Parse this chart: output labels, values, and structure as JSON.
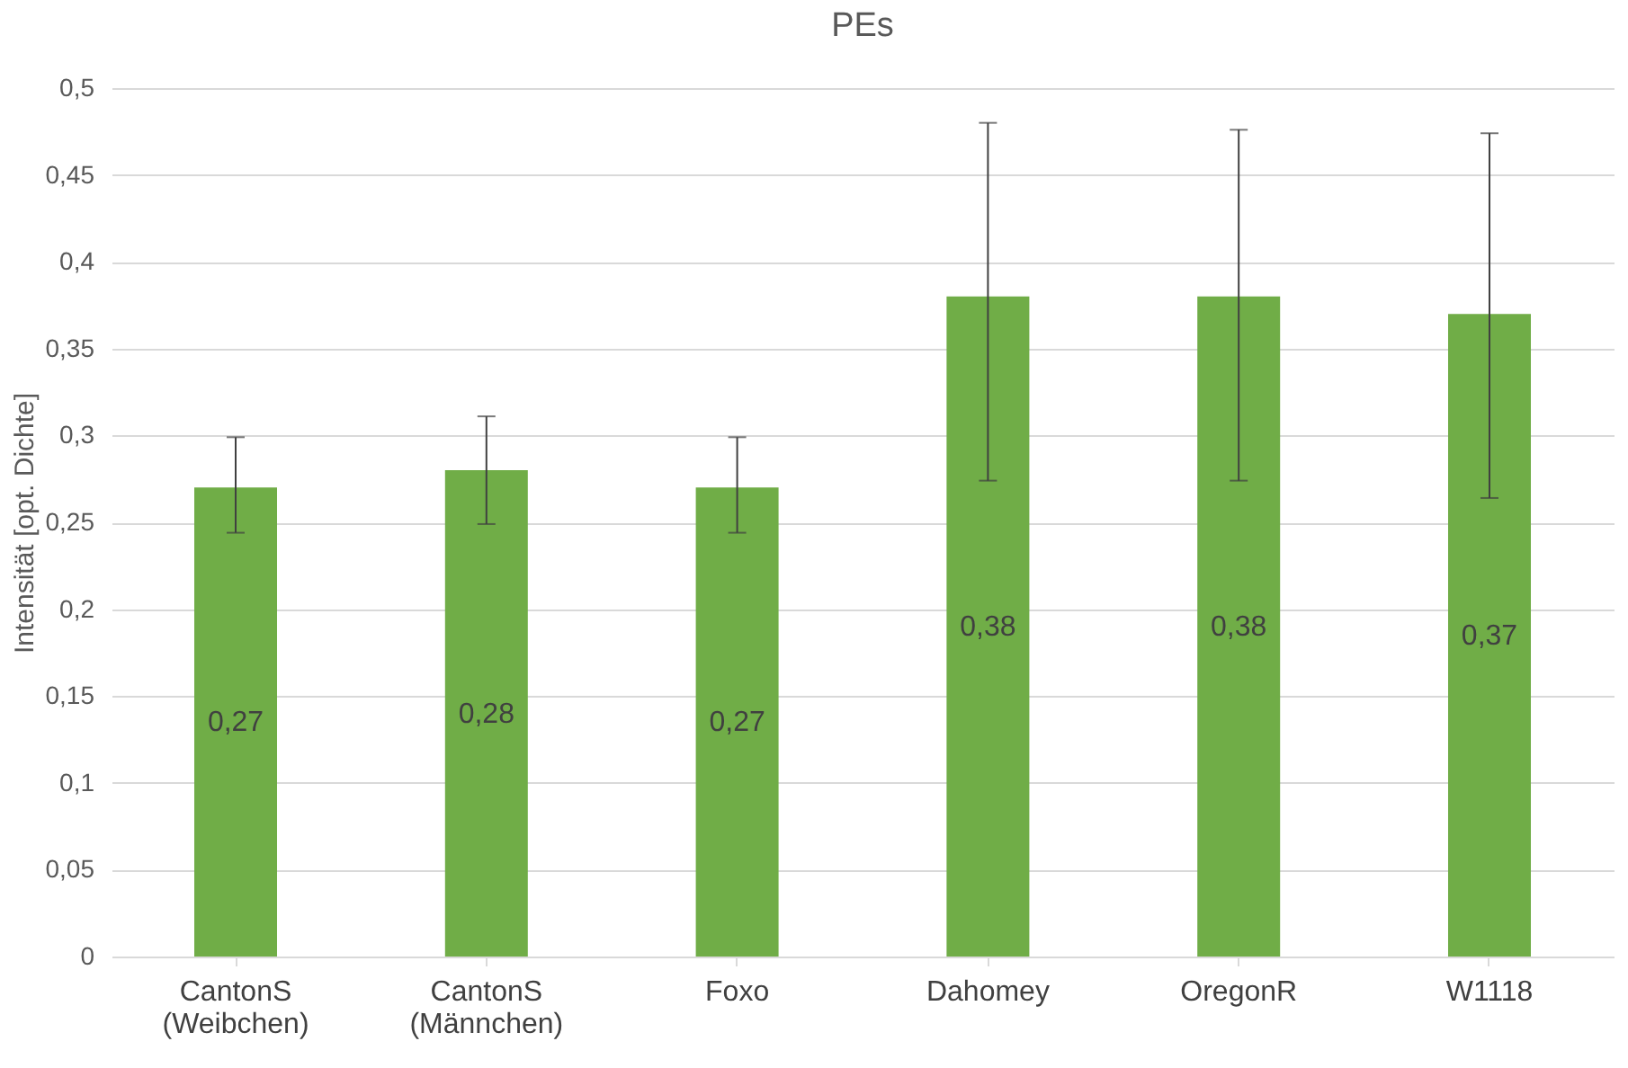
{
  "chart_data": {
    "type": "bar",
    "title": "PEs",
    "ylabel": "Intensität [opt. Dichte]",
    "categories": [
      "CantonS (Weibchen)",
      "CantonS (Männchen)",
      "Foxo",
      "Dahomey",
      "OregonR",
      "W1118"
    ],
    "values": [
      0.27,
      0.28,
      0.27,
      0.38,
      0.38,
      0.37
    ],
    "value_labels": [
      "0,27",
      "0,28",
      "0,27",
      "0,38",
      "0,38",
      "0,37"
    ],
    "errors": [
      [
        0.244,
        0.299
      ],
      [
        0.249,
        0.311
      ],
      [
        0.244,
        0.299
      ],
      [
        0.274,
        0.48
      ],
      [
        0.274,
        0.476
      ],
      [
        0.264,
        0.474
      ]
    ],
    "color": "#70ad47",
    "ylim": [
      0,
      0.5
    ],
    "yticks": [
      0,
      {
        "value": 0.05,
        "label": "0,05"
      },
      {
        "value": 0.1,
        "label": "0,1"
      },
      {
        "value": 0.15,
        "label": "0,15"
      },
      {
        "value": 0.2,
        "label": "0,2"
      },
      {
        "value": 0.25,
        "label": "0,25"
      },
      {
        "value": 0.3,
        "label": "0,3"
      },
      {
        "value": 0.35,
        "label": "0,35"
      },
      {
        "value": 0.4,
        "label": "0,4"
      },
      {
        "value": 0.45,
        "label": "0,45"
      },
      {
        "value": 0.5,
        "label": "0,5"
      }
    ],
    "grid": "y"
  }
}
